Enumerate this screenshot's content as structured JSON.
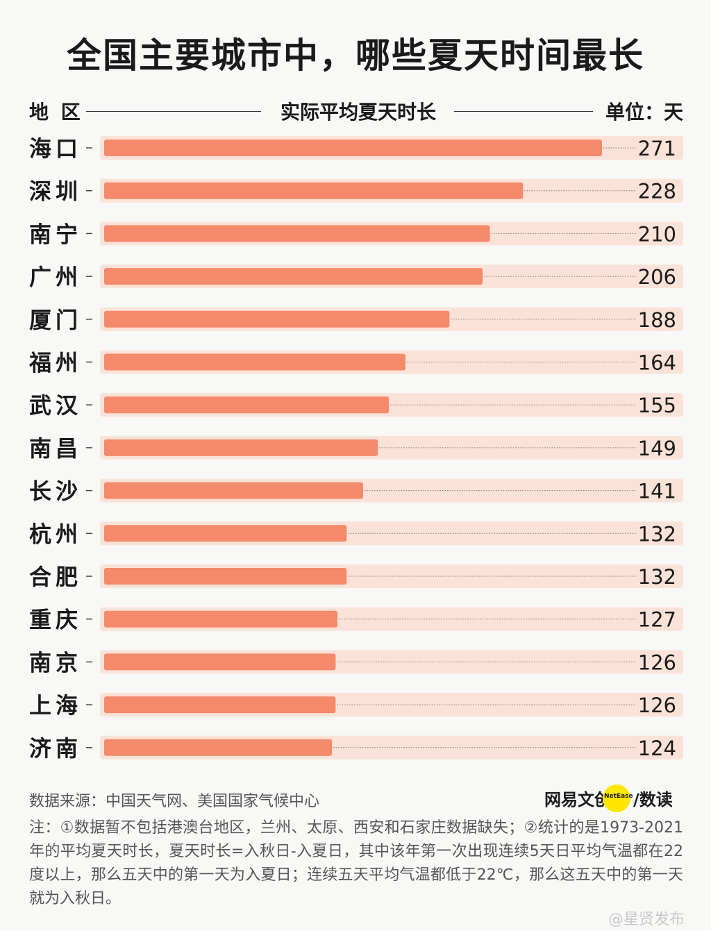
{
  "title": "全国主要城市中，哪些夏天时间最长",
  "header": {
    "left": "地 区",
    "middle": "实际平均夏天时长",
    "right": "单位：天"
  },
  "chart_data": {
    "type": "bar",
    "orientation": "horizontal",
    "categories": [
      "海口",
      "深圳",
      "南宁",
      "广州",
      "厦门",
      "福州",
      "武汉",
      "南昌",
      "长沙",
      "杭州",
      "合肥",
      "重庆",
      "南京",
      "上海",
      "济南"
    ],
    "values": [
      271,
      228,
      210,
      206,
      188,
      164,
      155,
      149,
      141,
      132,
      132,
      127,
      126,
      126,
      124
    ],
    "unit": "天",
    "colors": {
      "bar": "#f5896b",
      "track": "#fbe2d8"
    }
  },
  "footer": {
    "source": "数据来源：中国天气网、美国国家气候中心",
    "logo_text": "网易文创",
    "logo_en": "NetEase",
    "logo_text2": "/数读",
    "note": "注：①数据暂不包括港澳台地区，兰州、太原、西安和石家庄数据缺失；②统计的是1973-2021年的平均夏天时长，夏天时长=入秋日-入夏日，其中该年第一次出现连续5天日平均气温都在22度以上，那么五天中的第一天为入夏日；连续五天平均气温都低于22℃，那么这五天中的第一天就为入秋日。",
    "watermark": "@星贤发布"
  }
}
